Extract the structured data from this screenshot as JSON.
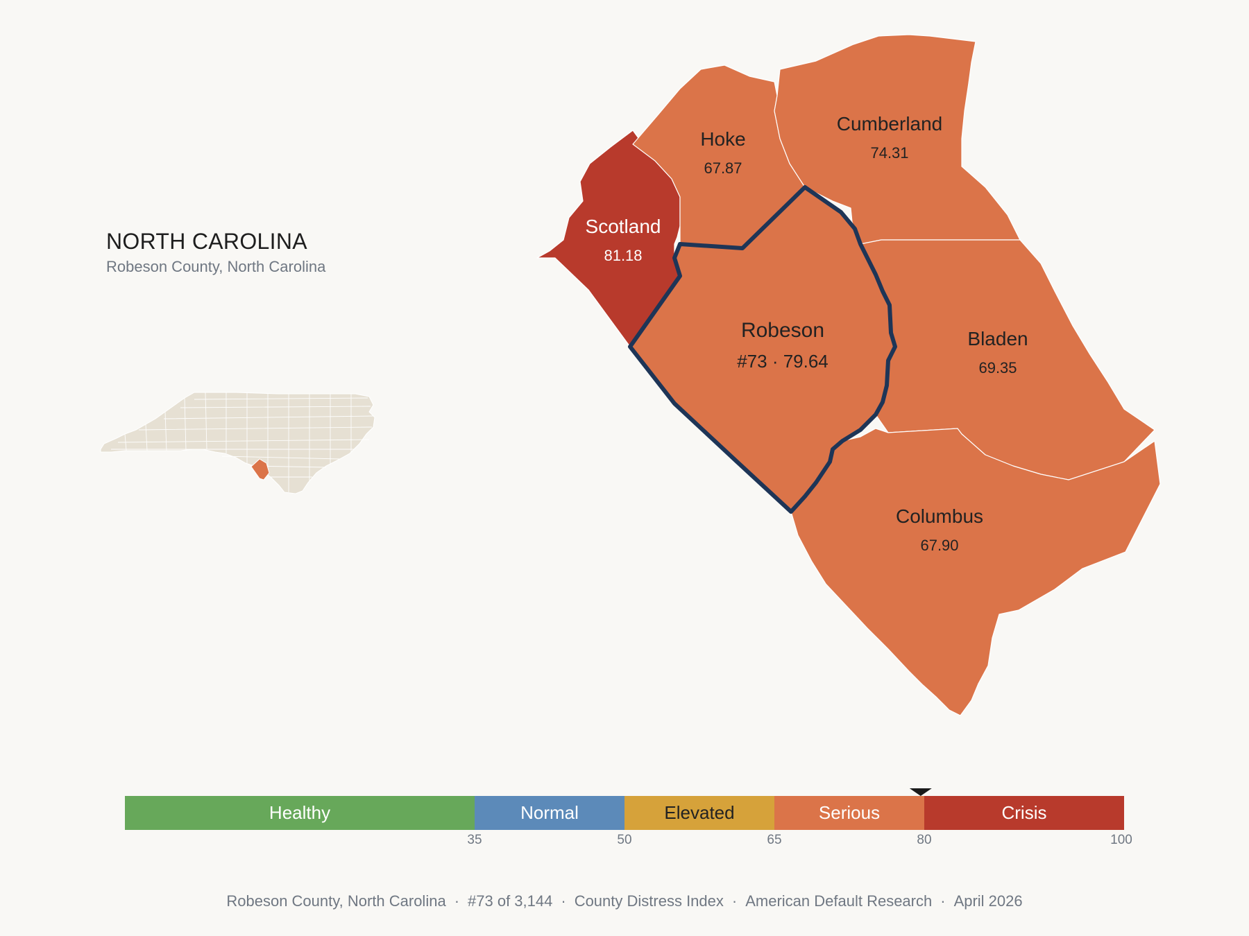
{
  "header": {
    "title": "NORTH CAROLINA",
    "subtitle": "Robeson County, North Carolina"
  },
  "colors": {
    "background": "#f9f8f5",
    "serious": "#db7449",
    "crisis": "#b83a2c",
    "healthy": "#67a85a",
    "normal": "#5c8ab9",
    "elevated": "#d6a23a",
    "highlight_border": "#1e3557",
    "locator_fill": "#e6e0d3"
  },
  "map": {
    "counties": [
      {
        "id": "scotland",
        "name": "Scotland",
        "value": "81.18",
        "color": "#b83a2c"
      },
      {
        "id": "hoke",
        "name": "Hoke",
        "value": "67.87",
        "color": "#db7449"
      },
      {
        "id": "cumberland",
        "name": "Cumberland",
        "value": "74.31",
        "color": "#db7449"
      },
      {
        "id": "robeson",
        "name": "Robeson",
        "value": "#73 · 79.64",
        "color": "#db7449",
        "highlighted": true
      },
      {
        "id": "bladen",
        "name": "Bladen",
        "value": "69.35",
        "color": "#db7449"
      },
      {
        "id": "columbus",
        "name": "Columbus",
        "value": "67.90",
        "color": "#db7449"
      }
    ]
  },
  "legend": {
    "segments": [
      {
        "label": "Healthy",
        "from": 0,
        "to": 35,
        "color": "#67a85a",
        "text_color": "#ffffff"
      },
      {
        "label": "Normal",
        "from": 35,
        "to": 50,
        "color": "#5c8ab9",
        "text_color": "#ffffff"
      },
      {
        "label": "Elevated",
        "from": 50,
        "to": 65,
        "color": "#d6a23a",
        "text_color": "#222222"
      },
      {
        "label": "Serious",
        "from": 65,
        "to": 80,
        "color": "#db7449",
        "text_color": "#ffffff"
      },
      {
        "label": "Crisis",
        "from": 80,
        "to": 100,
        "color": "#b83a2c",
        "text_color": "#ffffff"
      }
    ],
    "ticks": [
      "35",
      "50",
      "65",
      "80",
      "100"
    ],
    "marker_value": 79.64
  },
  "footer": {
    "county": "Robeson County, North Carolina",
    "rank": "#73 of 3,144",
    "index": "County Distress Index",
    "source": "American Default Research",
    "date": "April 2026"
  }
}
